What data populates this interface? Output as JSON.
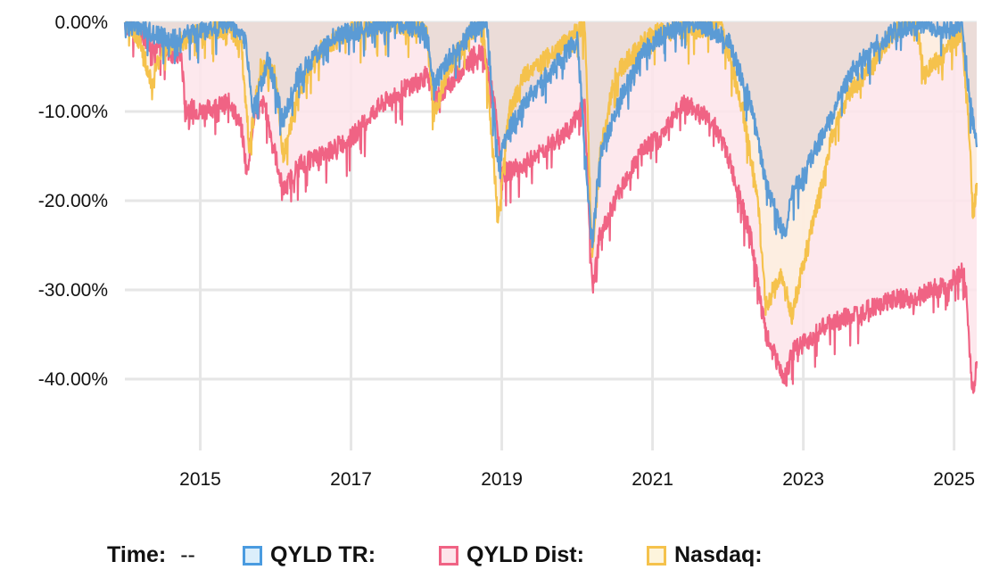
{
  "chart_data": {
    "type": "area",
    "title": "",
    "xlabel": "",
    "ylabel": "",
    "x_ticks": [
      "2015",
      "2017",
      "2019",
      "2021",
      "2023",
      "2025"
    ],
    "y_ticks": [
      "0.00%",
      "-10.00%",
      "-20.00%",
      "-30.00%",
      "-40.00%"
    ],
    "ylim": [
      -48,
      0
    ],
    "xlim": [
      2014.0,
      2025.3
    ],
    "grid": true,
    "legend_position": "bottom",
    "x_unit": "year",
    "y_unit": "percent drawdown",
    "series": [
      {
        "name": "QYLD Dist",
        "color": "#f06384",
        "fill": "#fde4ea",
        "x": [
          2014.0,
          2014.3,
          2014.5,
          2014.75,
          2014.8,
          2015.0,
          2015.4,
          2015.55,
          2015.62,
          2015.7,
          2015.85,
          2016.0,
          2016.1,
          2016.3,
          2016.6,
          2017.0,
          2017.3,
          2017.6,
          2018.0,
          2018.1,
          2018.3,
          2018.6,
          2018.75,
          2018.9,
          2019.0,
          2019.3,
          2019.6,
          2019.9,
          2020.1,
          2020.2,
          2020.3,
          2020.6,
          2020.9,
          2021.1,
          2021.4,
          2021.8,
          2022.0,
          2022.3,
          2022.5,
          2022.75,
          2022.85,
          2023.0,
          2023.3,
          2023.6,
          2023.9,
          2024.2,
          2024.5,
          2024.7,
          2024.9,
          2025.1,
          2025.15,
          2025.2,
          2025.25,
          2025.3
        ],
        "values": [
          0,
          -2,
          -3,
          -4,
          -9.5,
          -10,
          -9,
          -12,
          -17,
          -11,
          -9,
          -15,
          -19,
          -16,
          -15,
          -13,
          -10,
          -8,
          -6,
          -9,
          -7,
          -4,
          -3,
          -9,
          -17,
          -16,
          -14,
          -12,
          -9,
          -30,
          -24,
          -18,
          -14,
          -13,
          -9,
          -11,
          -15,
          -24,
          -35,
          -40,
          -37,
          -36,
          -34,
          -33,
          -32,
          -31,
          -31,
          -30,
          -29.5,
          -28,
          -29,
          -36,
          -42,
          -38
        ]
      },
      {
        "name": "Nasdaq",
        "color": "#f5c24c",
        "fill": "#fdeede",
        "x": [
          2014.0,
          2014.2,
          2014.35,
          2014.5,
          2014.8,
          2015.0,
          2015.4,
          2015.55,
          2015.65,
          2015.8,
          2016.0,
          2016.1,
          2016.3,
          2016.6,
          2017.0,
          2017.5,
          2018.0,
          2018.1,
          2018.3,
          2018.6,
          2018.75,
          2018.95,
          2019.1,
          2019.3,
          2019.6,
          2019.9,
          2020.1,
          2020.2,
          2020.3,
          2020.5,
          2020.7,
          2020.9,
          2021.1,
          2021.5,
          2021.9,
          2022.0,
          2022.2,
          2022.4,
          2022.5,
          2022.7,
          2022.85,
          2023.0,
          2023.2,
          2023.4,
          2023.6,
          2023.9,
          2024.2,
          2024.5,
          2024.6,
          2024.9,
          2025.1,
          2025.2,
          2025.25,
          2025.3
        ],
        "values": [
          0,
          -2,
          -7,
          -3,
          -2,
          -1,
          -0.5,
          -3,
          -14,
          -5,
          -6,
          -15,
          -8,
          -3,
          -1,
          0,
          -1,
          -10,
          -5,
          -1,
          0,
          -22,
          -10,
          -6,
          -4,
          -2,
          0,
          -27,
          -15,
          -6,
          -4,
          -2,
          -1,
          -1,
          0,
          -3,
          -10,
          -20,
          -32,
          -28,
          -33,
          -27,
          -20,
          -12,
          -8,
          -5,
          -1,
          0,
          -6,
          -3,
          -1,
          -12,
          -22,
          -18
        ]
      },
      {
        "name": "QYLD TR",
        "color": "#5b9bd5",
        "fill": "#e8d8d6",
        "x": [
          2014.0,
          2014.3,
          2014.6,
          2015.0,
          2015.4,
          2015.6,
          2015.7,
          2015.9,
          2016.1,
          2016.3,
          2016.7,
          2017.0,
          2017.5,
          2018.0,
          2018.1,
          2018.3,
          2018.6,
          2018.8,
          2018.95,
          2019.1,
          2019.4,
          2019.7,
          2020.0,
          2020.2,
          2020.3,
          2020.6,
          2020.9,
          2021.2,
          2021.6,
          2022.0,
          2022.3,
          2022.5,
          2022.75,
          2022.85,
          2023.0,
          2023.3,
          2023.6,
          2023.9,
          2024.2,
          2024.6,
          2024.9,
          2025.1,
          2025.2,
          2025.3
        ],
        "values": [
          0,
          -1,
          -2,
          -1,
          0,
          -2,
          -10,
          -4,
          -11,
          -6,
          -2,
          -1,
          0,
          -1,
          -7,
          -4,
          -1,
          0,
          -16,
          -12,
          -8,
          -5,
          -2,
          -25,
          -15,
          -8,
          -3,
          -1,
          0,
          -2,
          -9,
          -18,
          -24,
          -19,
          -17,
          -12,
          -6,
          -3,
          -1,
          0,
          -1,
          0,
          -8,
          -14
        ]
      }
    ]
  },
  "legend": {
    "time_label": "Time:",
    "time_value": "--",
    "items": [
      {
        "label": "QYLD TR:",
        "color": "#4a9be0",
        "fill": "#dbeefb"
      },
      {
        "label": "QYLD Dist:",
        "color": "#f06384",
        "fill": "#fde4ea"
      },
      {
        "label": "Nasdaq:",
        "color": "#f5c24c",
        "fill": "#fdf4dc"
      }
    ]
  }
}
